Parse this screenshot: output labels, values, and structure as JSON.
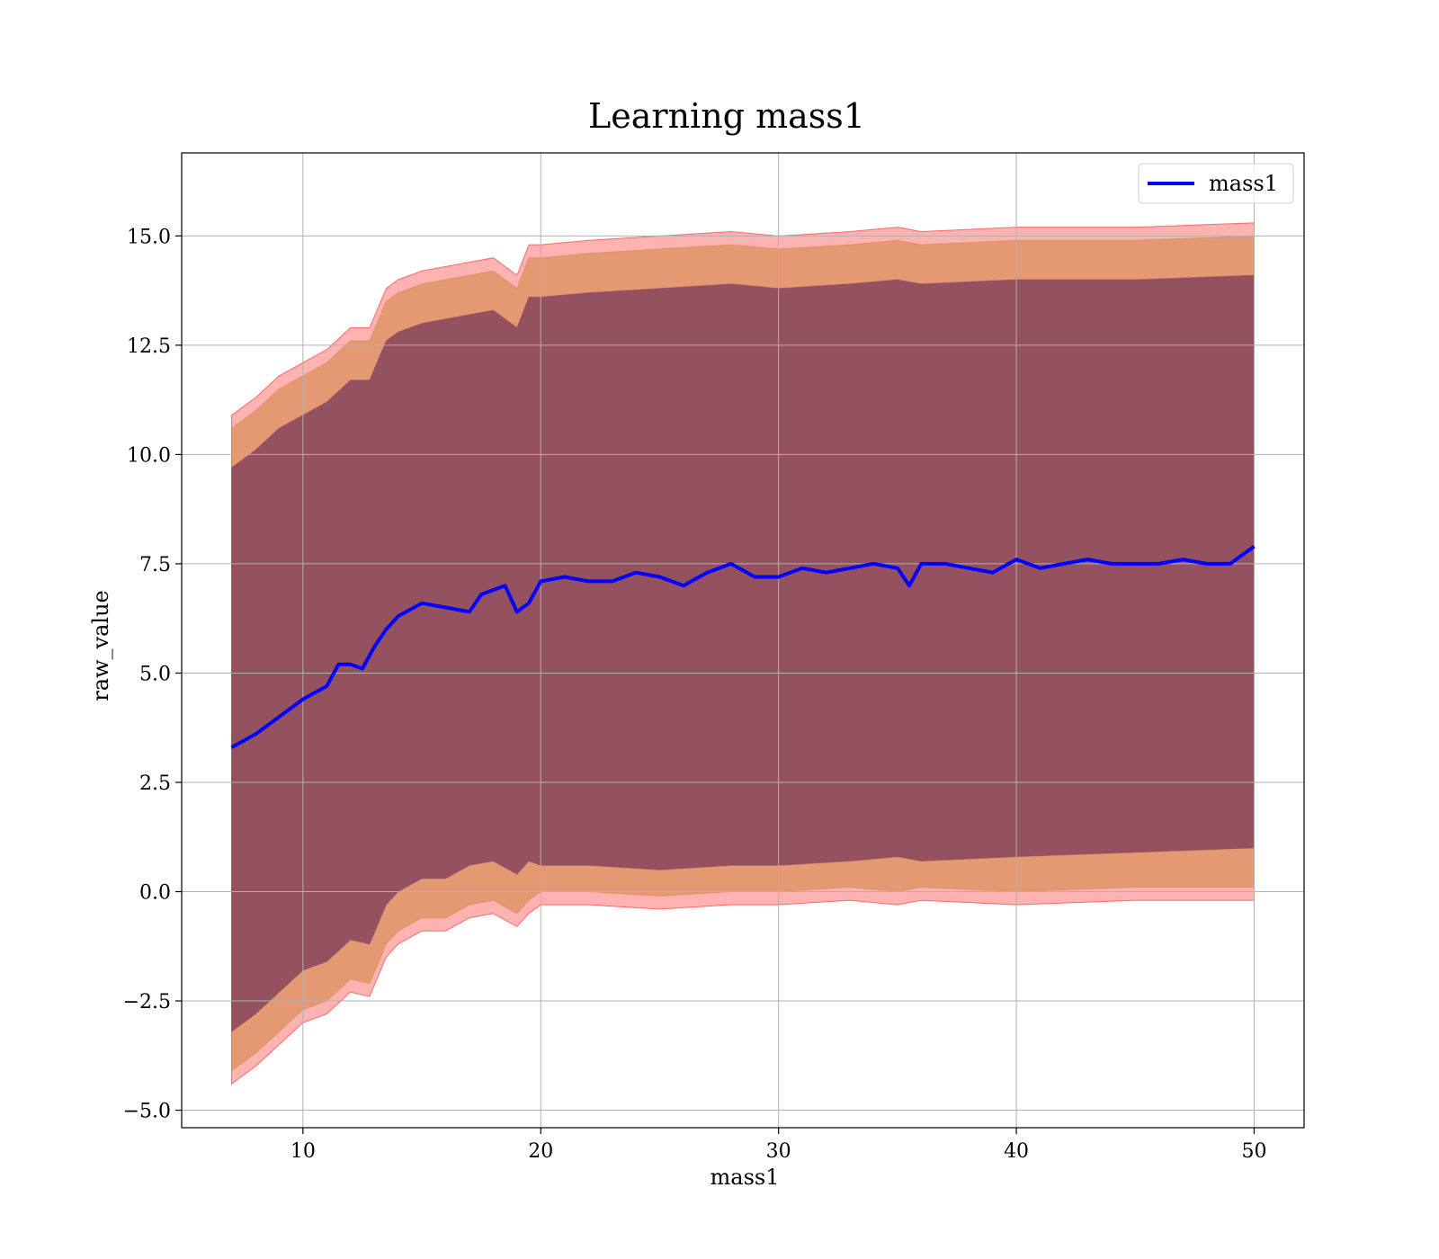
{
  "chart_data": {
    "type": "line",
    "title": "Learning mass1",
    "xlabel": "mass1",
    "ylabel": "raw_value",
    "xlim": [
      4.9,
      52.1
    ],
    "ylim": [
      -5.4,
      16.9
    ],
    "xticks": [
      10,
      20,
      30,
      40,
      50
    ],
    "yticks": [
      -5.0,
      -2.5,
      0.0,
      2.5,
      5.0,
      7.5,
      10.0,
      12.5,
      15.0
    ],
    "grid": true,
    "legend_position": "top-right",
    "series": [
      {
        "name": "mass1",
        "color": "#0000ff",
        "x": [
          7,
          8,
          9,
          10,
          11,
          11.5,
          12,
          12.5,
          13,
          13.5,
          14,
          15,
          16,
          17,
          17.5,
          18,
          18.5,
          19,
          19.5,
          20,
          21,
          22,
          23,
          24,
          25,
          26,
          27,
          28,
          29,
          30,
          31,
          32,
          33,
          34,
          35,
          35.5,
          36,
          37,
          38,
          39,
          40,
          41,
          42,
          43,
          44,
          45,
          46,
          47,
          48,
          49,
          50
        ],
        "y": [
          3.3,
          3.6,
          4.0,
          4.4,
          4.7,
          5.2,
          5.2,
          5.1,
          5.6,
          6.0,
          6.3,
          6.6,
          6.5,
          6.4,
          6.8,
          6.9,
          7.0,
          6.4,
          6.6,
          7.1,
          7.2,
          7.1,
          7.1,
          7.3,
          7.2,
          7.0,
          7.3,
          7.5,
          7.2,
          7.2,
          7.4,
          7.3,
          7.4,
          7.5,
          7.4,
          7.0,
          7.5,
          7.5,
          7.4,
          7.3,
          7.6,
          7.4,
          7.5,
          7.6,
          7.5,
          7.5,
          7.5,
          7.6,
          7.5,
          7.5,
          7.9
        ]
      }
    ],
    "bands": [
      {
        "color": "#ff0000",
        "opacity": 0.3,
        "x": [
          7,
          8,
          9,
          10,
          11,
          12,
          12.8,
          13.5,
          14,
          15,
          16,
          17,
          18,
          19,
          19.5,
          20,
          22,
          25,
          28,
          30,
          33,
          35,
          36,
          40,
          45,
          50
        ],
        "upper": [
          10.9,
          11.3,
          11.8,
          12.1,
          12.4,
          12.9,
          12.9,
          13.8,
          14.0,
          14.2,
          14.3,
          14.4,
          14.5,
          14.1,
          14.8,
          14.8,
          14.9,
          15.0,
          15.1,
          15.0,
          15.1,
          15.2,
          15.1,
          15.2,
          15.2,
          15.3
        ],
        "lower": [
          -4.4,
          -4.0,
          -3.5,
          -3.0,
          -2.8,
          -2.3,
          -2.4,
          -1.5,
          -1.2,
          -0.9,
          -0.9,
          -0.6,
          -0.5,
          -0.8,
          -0.5,
          -0.3,
          -0.3,
          -0.4,
          -0.3,
          -0.3,
          -0.2,
          -0.3,
          -0.2,
          -0.3,
          -0.2,
          -0.2
        ]
      },
      {
        "color": "#cd853f",
        "opacity": 0.55,
        "x": [
          7,
          8,
          9,
          10,
          11,
          12,
          12.8,
          13.5,
          14,
          15,
          16,
          17,
          18,
          19,
          19.5,
          20,
          22,
          25,
          28,
          30,
          33,
          35,
          36,
          40,
          45,
          50
        ],
        "upper": [
          10.6,
          11.0,
          11.5,
          11.8,
          12.1,
          12.6,
          12.6,
          13.5,
          13.7,
          13.9,
          14.0,
          14.1,
          14.2,
          13.8,
          14.5,
          14.5,
          14.6,
          14.7,
          14.8,
          14.7,
          14.8,
          14.9,
          14.8,
          14.9,
          14.9,
          15.0
        ],
        "lower": [
          -4.1,
          -3.7,
          -3.2,
          -2.7,
          -2.5,
          -2.0,
          -2.1,
          -1.2,
          -0.9,
          -0.6,
          -0.6,
          -0.3,
          -0.2,
          -0.5,
          -0.2,
          0.0,
          0.0,
          -0.1,
          0.0,
          0.0,
          0.1,
          0.0,
          0.1,
          0.0,
          0.1,
          0.1
        ]
      },
      {
        "color": "#8b4a5f",
        "opacity": 0.9,
        "x": [
          7,
          8,
          9,
          10,
          11,
          12,
          12.8,
          13.5,
          14,
          15,
          16,
          17,
          18,
          19,
          19.5,
          20,
          22,
          25,
          28,
          30,
          33,
          35,
          36,
          40,
          45,
          50
        ],
        "upper": [
          9.7,
          10.1,
          10.6,
          10.9,
          11.2,
          11.7,
          11.7,
          12.6,
          12.8,
          13.0,
          13.1,
          13.2,
          13.3,
          12.9,
          13.6,
          13.6,
          13.7,
          13.8,
          13.9,
          13.8,
          13.9,
          14.0,
          13.9,
          14.0,
          14.0,
          14.1
        ],
        "lower": [
          -3.2,
          -2.8,
          -2.3,
          -1.8,
          -1.6,
          -1.1,
          -1.2,
          -0.3,
          0.0,
          0.3,
          0.3,
          0.6,
          0.7,
          0.4,
          0.7,
          0.6,
          0.6,
          0.5,
          0.6,
          0.6,
          0.7,
          0.8,
          0.7,
          0.8,
          0.9,
          1.0
        ]
      }
    ]
  }
}
